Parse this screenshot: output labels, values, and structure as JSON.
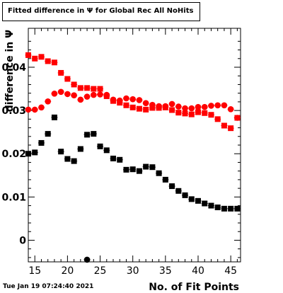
{
  "header": {
    "title": "Fitted difference in  Ψ  for Global Rec All NoHits"
  },
  "footer": {
    "timestamp": "Tue Jan 19 07:24:40 2021"
  },
  "colors": {
    "red_series": "#ff0000",
    "black_series": "#000000",
    "axis": "#000000"
  },
  "chart_data": {
    "type": "scatter",
    "title": "Fitted difference in  Ψ  for Global Rec All NoHits",
    "xlabel": "No. of Fit Points",
    "ylabel": "difference in  Ψ",
    "xlim": [
      14,
      46.5
    ],
    "ylim": [
      -0.005,
      0.049
    ],
    "x_ticks": [
      "15",
      "20",
      "25",
      "30",
      "35",
      "40",
      "45"
    ],
    "x_tick_values": [
      15,
      20,
      25,
      30,
      35,
      40,
      45
    ],
    "y_ticks": [
      "0",
      "0.01",
      "0.02",
      "0.03",
      "0.04"
    ],
    "y_tick_values": [
      0,
      0.01,
      0.02,
      0.03,
      0.04
    ],
    "grid": false,
    "series": [
      {
        "marker": "square",
        "color": "#ff0000",
        "x": [
          14,
          15,
          16,
          17,
          18,
          19,
          20,
          21,
          22,
          23,
          24,
          25,
          26,
          27,
          28,
          29,
          30,
          31,
          32,
          33,
          34,
          35,
          36,
          37,
          38,
          39,
          40,
          41,
          42,
          43,
          44,
          45,
          46
        ],
        "y": [
          0.0428,
          0.042,
          0.0424,
          0.0414,
          0.0411,
          0.0387,
          0.0373,
          0.036,
          0.0352,
          0.0352,
          0.035,
          0.035,
          0.0333,
          0.0322,
          0.0318,
          0.0312,
          0.0307,
          0.0304,
          0.0302,
          0.0306,
          0.0306,
          0.0307,
          0.0301,
          0.0295,
          0.0293,
          0.0291,
          0.0296,
          0.0294,
          0.029,
          0.028,
          0.0265,
          0.0259,
          0.0283
        ]
      },
      {
        "marker": "circle",
        "color": "#ff0000",
        "x": [
          14,
          15,
          16,
          17,
          18,
          19,
          20,
          21,
          22,
          23,
          24,
          25,
          26,
          27,
          28,
          29,
          30,
          31,
          32,
          33,
          34,
          35,
          36,
          37,
          38,
          39,
          40,
          41,
          42,
          43,
          44,
          45,
          46
        ],
        "y": [
          0.0302,
          0.0302,
          0.0307,
          0.0321,
          0.0339,
          0.0343,
          0.0338,
          0.0335,
          0.0325,
          0.0332,
          0.0336,
          0.0337,
          0.0336,
          0.0325,
          0.0323,
          0.0328,
          0.0326,
          0.0324,
          0.0317,
          0.0313,
          0.031,
          0.031,
          0.0315,
          0.0309,
          0.0305,
          0.0305,
          0.0308,
          0.0308,
          0.0311,
          0.0312,
          0.0312,
          0.0303,
          0.0283
        ]
      },
      {
        "marker": "square",
        "color": "#000000",
        "x": [
          14,
          15,
          16,
          17,
          18,
          19,
          20,
          21,
          22,
          23,
          24,
          25,
          26,
          27,
          28,
          29,
          30,
          31,
          32,
          33,
          34,
          35,
          36,
          37,
          38,
          39,
          40,
          41,
          42,
          43,
          44,
          45,
          46
        ],
        "y": [
          0.02,
          0.0203,
          0.0225,
          0.0246,
          0.0284,
          0.0205,
          0.0188,
          0.0183,
          0.0211,
          0.0244,
          0.0246,
          0.0217,
          0.0208,
          0.0189,
          0.0186,
          0.0163,
          0.0164,
          0.016,
          0.017,
          0.0169,
          0.0155,
          0.014,
          0.0125,
          0.0114,
          0.0104,
          0.0095,
          0.0091,
          0.0085,
          0.008,
          0.0076,
          0.0073,
          0.0073,
          0.0073
        ]
      },
      {
        "marker": "circle",
        "color": "#000000",
        "x": [
          23
        ],
        "y": [
          -0.0045
        ]
      }
    ]
  }
}
